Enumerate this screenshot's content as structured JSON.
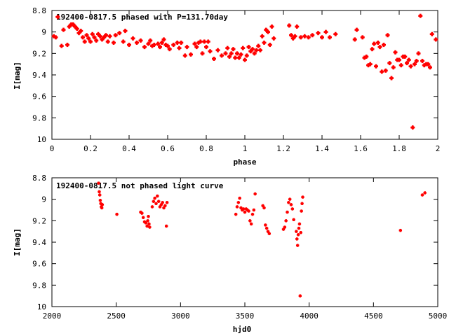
{
  "chart_data": [
    {
      "type": "scatter",
      "title": "192400-0817.5 phased with P=131.70day",
      "xlabel": "phase",
      "ylabel": "I[mag]",
      "xlim": [
        0,
        2
      ],
      "ylim": [
        8.8,
        10
      ],
      "y_inverted": true,
      "x_ticks": [
        "0",
        "0.2",
        "0.4",
        "0.6",
        "0.8",
        "1",
        "1.2",
        "1.4",
        "1.6",
        "1.8",
        "2"
      ],
      "y_ticks": [
        "8.8",
        "9",
        "9.2",
        "9.4",
        "9.6",
        "9.8",
        "10"
      ],
      "color": "#ff0000",
      "marker": "cross",
      "points": [
        [
          0.01,
          9.04
        ],
        [
          0.02,
          9.05
        ],
        [
          0.03,
          8.86
        ],
        [
          0.05,
          9.13
        ],
        [
          0.06,
          8.98
        ],
        [
          0.08,
          9.12
        ],
        [
          0.09,
          8.95
        ],
        [
          0.1,
          8.93
        ],
        [
          0.11,
          8.93
        ],
        [
          0.12,
          8.95
        ],
        [
          0.13,
          8.97
        ],
        [
          0.14,
          9.01
        ],
        [
          0.15,
          8.99
        ],
        [
          0.16,
          9.05
        ],
        [
          0.17,
          9.09
        ],
        [
          0.18,
          9.03
        ],
        [
          0.19,
          9.06
        ],
        [
          0.2,
          9.09
        ],
        [
          0.21,
          9.02
        ],
        [
          0.22,
          9.05
        ],
        [
          0.23,
          9.08
        ],
        [
          0.24,
          9.02
        ],
        [
          0.25,
          9.04
        ],
        [
          0.26,
          9.07
        ],
        [
          0.27,
          9.05
        ],
        [
          0.28,
          9.03
        ],
        [
          0.29,
          9.09
        ],
        [
          0.3,
          9.04
        ],
        [
          0.32,
          9.1
        ],
        [
          0.33,
          9.03
        ],
        [
          0.35,
          9.01
        ],
        [
          0.37,
          9.09
        ],
        [
          0.38,
          8.99
        ],
        [
          0.4,
          9.12
        ],
        [
          0.42,
          9.06
        ],
        [
          0.44,
          9.1
        ],
        [
          0.46,
          9.08
        ],
        [
          0.48,
          9.14
        ],
        [
          0.5,
          9.11
        ],
        [
          0.51,
          9.08
        ],
        [
          0.52,
          9.13
        ],
        [
          0.53,
          9.12
        ],
        [
          0.55,
          9.11
        ],
        [
          0.56,
          9.14
        ],
        [
          0.57,
          9.1
        ],
        [
          0.58,
          9.07
        ],
        [
          0.59,
          9.12
        ],
        [
          0.6,
          9.13
        ],
        [
          0.61,
          9.16
        ],
        [
          0.63,
          9.12
        ],
        [
          0.65,
          9.1
        ],
        [
          0.66,
          9.15
        ],
        [
          0.67,
          9.1
        ],
        [
          0.69,
          9.22
        ],
        [
          0.7,
          9.14
        ],
        [
          0.72,
          9.21
        ],
        [
          0.74,
          9.11
        ],
        [
          0.75,
          9.14
        ],
        [
          0.76,
          9.1
        ],
        [
          0.77,
          9.09
        ],
        [
          0.78,
          9.2
        ],
        [
          0.79,
          9.09
        ],
        [
          0.8,
          9.14
        ],
        [
          0.81,
          9.09
        ],
        [
          0.82,
          9.18
        ],
        [
          0.84,
          9.25
        ],
        [
          0.86,
          9.17
        ],
        [
          0.88,
          9.22
        ],
        [
          0.9,
          9.2
        ],
        [
          0.91,
          9.15
        ],
        [
          0.92,
          9.23
        ],
        [
          0.93,
          9.2
        ],
        [
          0.94,
          9.16
        ],
        [
          0.95,
          9.24
        ],
        [
          0.96,
          9.2
        ],
        [
          0.97,
          9.24
        ],
        [
          0.98,
          9.21
        ],
        [
          0.99,
          9.15
        ],
        [
          1.0,
          9.26
        ],
        [
          1.01,
          9.22
        ],
        [
          1.02,
          9.14
        ],
        [
          1.03,
          9.18
        ],
        [
          1.04,
          9.16
        ],
        [
          1.05,
          9.2
        ],
        [
          1.06,
          9.17
        ],
        [
          1.07,
          9.13
        ],
        [
          1.08,
          9.17
        ],
        [
          1.09,
          9.04
        ],
        [
          1.1,
          9.1
        ],
        [
          1.11,
          8.98
        ],
        [
          1.12,
          9.0
        ],
        [
          1.13,
          9.12
        ],
        [
          1.14,
          8.95
        ],
        [
          1.15,
          9.06
        ],
        [
          1.23,
          8.94
        ],
        [
          1.24,
          9.03
        ],
        [
          1.25,
          9.06
        ],
        [
          1.26,
          9.04
        ],
        [
          1.27,
          8.95
        ],
        [
          1.29,
          9.05
        ],
        [
          1.31,
          9.04
        ],
        [
          1.33,
          9.05
        ],
        [
          1.35,
          9.03
        ],
        [
          1.38,
          9.01
        ],
        [
          1.4,
          9.05
        ],
        [
          1.42,
          9.0
        ],
        [
          1.44,
          9.05
        ],
        [
          1.47,
          9.02
        ],
        [
          1.57,
          9.07
        ],
        [
          1.58,
          8.98
        ],
        [
          1.61,
          9.05
        ],
        [
          1.62,
          9.24
        ],
        [
          1.63,
          9.23
        ],
        [
          1.64,
          9.31
        ],
        [
          1.65,
          9.3
        ],
        [
          1.66,
          9.16
        ],
        [
          1.67,
          9.11
        ],
        [
          1.68,
          9.32
        ],
        [
          1.69,
          9.1
        ],
        [
          1.7,
          9.14
        ],
        [
          1.71,
          9.37
        ],
        [
          1.72,
          9.12
        ],
        [
          1.73,
          9.36
        ],
        [
          1.74,
          9.03
        ],
        [
          1.75,
          9.29
        ],
        [
          1.76,
          9.43
        ],
        [
          1.77,
          9.33
        ],
        [
          1.78,
          9.19
        ],
        [
          1.79,
          9.26
        ],
        [
          1.8,
          9.26
        ],
        [
          1.81,
          9.31
        ],
        [
          1.82,
          9.23
        ],
        [
          1.83,
          9.23
        ],
        [
          1.84,
          9.29
        ],
        [
          1.85,
          9.26
        ],
        [
          1.86,
          9.32
        ],
        [
          1.87,
          9.89
        ],
        [
          1.88,
          9.3
        ],
        [
          1.89,
          9.27
        ],
        [
          1.9,
          9.2
        ],
        [
          1.91,
          8.85
        ],
        [
          1.92,
          9.27
        ],
        [
          1.93,
          9.31
        ],
        [
          1.94,
          9.3
        ],
        [
          1.95,
          9.3
        ],
        [
          1.96,
          9.33
        ],
        [
          1.97,
          9.02
        ],
        [
          1.99,
          9.07
        ]
      ]
    },
    {
      "type": "scatter",
      "title": "192400-0817.5 not phased light curve",
      "xlabel": "hjd0",
      "ylabel": "I[mag]",
      "xlim": [
        2000,
        5000
      ],
      "ylim": [
        8.8,
        10
      ],
      "y_inverted": true,
      "x_ticks": [
        "2000",
        "2500",
        "3000",
        "3500",
        "4000",
        "4500",
        "5000"
      ],
      "y_ticks": [
        "8.8",
        "9",
        "9.2",
        "9.4",
        "9.6",
        "9.8",
        "10"
      ],
      "color": "#ff0000",
      "marker": "cross",
      "points": [
        [
          2363,
          8.85
        ],
        [
          2368,
          8.93
        ],
        [
          2372,
          8.96
        ],
        [
          2376,
          9.01
        ],
        [
          2380,
          9.04
        ],
        [
          2384,
          9.07
        ],
        [
          2388,
          9.08
        ],
        [
          2392,
          9.05
        ],
        [
          2505,
          9.14
        ],
        [
          2690,
          9.12
        ],
        [
          2700,
          9.13
        ],
        [
          2710,
          9.17
        ],
        [
          2720,
          9.21
        ],
        [
          2730,
          9.22
        ],
        [
          2740,
          9.25
        ],
        [
          2745,
          9.2
        ],
        [
          2750,
          9.16
        ],
        [
          2755,
          9.23
        ],
        [
          2760,
          9.26
        ],
        [
          2780,
          9.07
        ],
        [
          2790,
          9.02
        ],
        [
          2800,
          8.99
        ],
        [
          2810,
          9.04
        ],
        [
          2820,
          8.97
        ],
        [
          2830,
          9.02
        ],
        [
          2840,
          9.07
        ],
        [
          2850,
          9.05
        ],
        [
          2860,
          9.03
        ],
        [
          2870,
          9.08
        ],
        [
          2880,
          9.06
        ],
        [
          2890,
          9.25
        ],
        [
          2895,
          9.03
        ],
        [
          3430,
          9.14
        ],
        [
          3440,
          9.07
        ],
        [
          3450,
          9.03
        ],
        [
          3460,
          8.99
        ],
        [
          3470,
          9.08
        ],
        [
          3480,
          9.1
        ],
        [
          3490,
          9.09
        ],
        [
          3500,
          9.12
        ],
        [
          3510,
          9.09
        ],
        [
          3520,
          9.1
        ],
        [
          3530,
          9.11
        ],
        [
          3540,
          9.2
        ],
        [
          3550,
          9.23
        ],
        [
          3560,
          9.14
        ],
        [
          3570,
          9.1
        ],
        [
          3580,
          8.95
        ],
        [
          3640,
          9.06
        ],
        [
          3650,
          9.08
        ],
        [
          3660,
          9.24
        ],
        [
          3670,
          9.27
        ],
        [
          3680,
          9.3
        ],
        [
          3690,
          9.32
        ],
        [
          3800,
          9.28
        ],
        [
          3810,
          9.26
        ],
        [
          3820,
          9.2
        ],
        [
          3830,
          9.12
        ],
        [
          3840,
          9.03
        ],
        [
          3850,
          9.0
        ],
        [
          3860,
          9.05
        ],
        [
          3870,
          9.09
        ],
        [
          3880,
          9.19
        ],
        [
          3900,
          9.3
        ],
        [
          3905,
          9.37
        ],
        [
          3910,
          9.43
        ],
        [
          3915,
          9.33
        ],
        [
          3920,
          9.27
        ],
        [
          3925,
          9.23
        ],
        [
          3930,
          9.9
        ],
        [
          3935,
          9.31
        ],
        [
          3940,
          9.11
        ],
        [
          3945,
          9.04
        ],
        [
          3950,
          8.98
        ],
        [
          4710,
          9.29
        ],
        [
          4880,
          8.96
        ],
        [
          4900,
          8.94
        ]
      ]
    }
  ]
}
